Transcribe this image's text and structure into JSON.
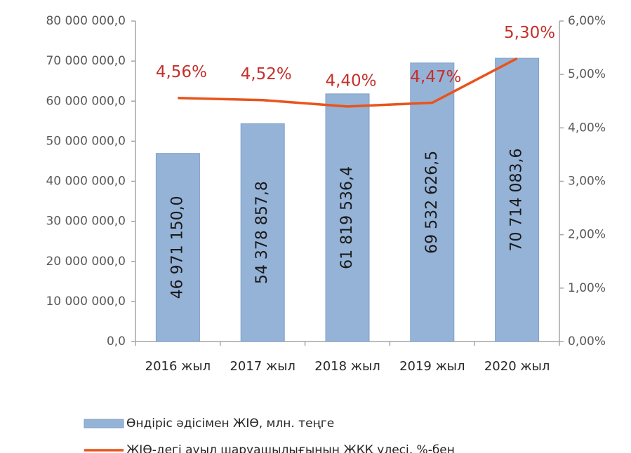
{
  "chart_data": {
    "type": "bar",
    "categories": [
      "2016 жыл",
      "2017 жыл",
      "2018 жыл",
      "2019 жыл",
      "2020 жыл"
    ],
    "series": [
      {
        "name": "Өндіріс әдісімен ЖІӨ, млн. теңге",
        "type": "bar",
        "color": "#95b3d7",
        "values": [
          46971150.0,
          54378857.8,
          61819536.4,
          69532626.5,
          70714083.6
        ],
        "value_labels": [
          "46 971 150,0",
          "54 378 857,8",
          "61 819 536,4",
          "69 532 626,5",
          "70 714 083,6"
        ]
      },
      {
        "name": "ЖІӨ-дегі ауыл шаруашылығының  ЖҚҚ үлесі, %-бен",
        "type": "line",
        "axis": "y2",
        "color": "#e8541c",
        "values": [
          4.56,
          4.52,
          4.4,
          4.47,
          5.3
        ],
        "value_labels": [
          "4,56%",
          "4,52%",
          "4,40%",
          "4,47%",
          "5,30%"
        ]
      }
    ],
    "ylim": [
      0,
      80000000
    ],
    "yticks": [
      {
        "value": 0,
        "label": "0,0"
      },
      {
        "value": 10000000,
        "label": "10 000 000,0"
      },
      {
        "value": 20000000,
        "label": "20 000 000,0"
      },
      {
        "value": 30000000,
        "label": "30 000 000,0"
      },
      {
        "value": 40000000,
        "label": "40 000 000,0"
      },
      {
        "value": 50000000,
        "label": "50 000 000,0"
      },
      {
        "value": 60000000,
        "label": "60 000 000,0"
      },
      {
        "value": 70000000,
        "label": "70 000 000,0"
      },
      {
        "value": 80000000,
        "label": "80 000 000,0"
      }
    ],
    "y2lim": [
      0,
      6
    ],
    "y2ticks": [
      {
        "value": 0,
        "label": "0,00%"
      },
      {
        "value": 1,
        "label": "1,00%"
      },
      {
        "value": 2,
        "label": "2,00%"
      },
      {
        "value": 3,
        "label": "3,00%"
      },
      {
        "value": 4,
        "label": "4,00%"
      },
      {
        "value": 5,
        "label": "5,00%"
      },
      {
        "value": 6,
        "label": "6,00%"
      }
    ],
    "grid": false,
    "legend": "bottom"
  }
}
